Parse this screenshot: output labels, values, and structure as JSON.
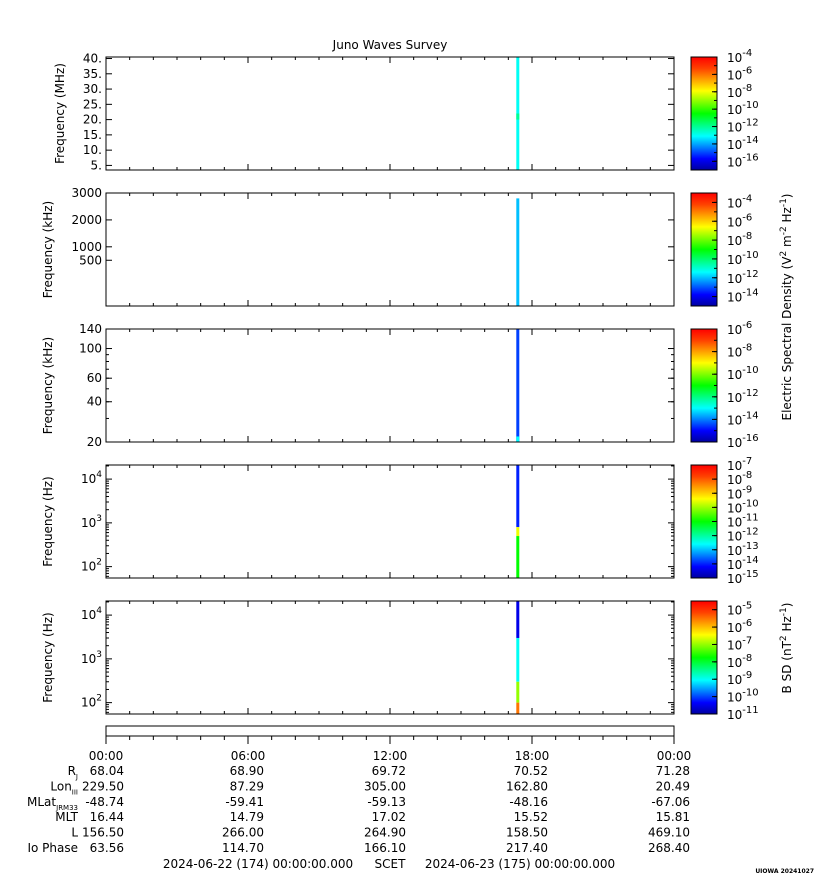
{
  "title": "Juno Waves Survey",
  "stamp": "UIOWA 20241027",
  "colors": {
    "spectrum": [
      "#0000a0",
      "#0000ff",
      "#0080ff",
      "#00ffff",
      "#00ff80",
      "#00ff00",
      "#80ff00",
      "#ffff00",
      "#ffa000",
      "#ff4000",
      "#ff0000"
    ]
  },
  "chart_data": [
    {
      "type": "heatmap",
      "ylabel": "Frequency (MHz)",
      "yscale": "linear",
      "ylim": [
        3.5,
        40.5
      ],
      "yticks": [
        {
          "v": 5,
          "t": "5."
        },
        {
          "v": 10,
          "t": "10."
        },
        {
          "v": 15,
          "t": "15."
        },
        {
          "v": 20,
          "t": "20."
        },
        {
          "v": 25,
          "t": "25."
        },
        {
          "v": 30,
          "t": "30."
        },
        {
          "v": 35,
          "t": "35."
        },
        {
          "v": 40,
          "t": "40."
        }
      ],
      "cbar": {
        "min": -17,
        "max": -4,
        "ticks": [
          -4,
          -6,
          -8,
          -10,
          -12,
          -14,
          -16
        ]
      },
      "streak": {
        "time_h": 17.4,
        "segments": [
          {
            "y0": 3.5,
            "y1": 40.5,
            "level": -13
          },
          {
            "y0": 20,
            "y1": 22,
            "level": -12
          }
        ]
      }
    },
    {
      "type": "heatmap",
      "ylabel": "Frequency (kHz)",
      "yscale": "linear",
      "ylim": [
        -1200,
        3000
      ],
      "yticks": [
        {
          "v": 500,
          "t": "500"
        },
        {
          "v": 1000,
          "t": "1000"
        },
        {
          "v": 2000,
          "t": "2000"
        },
        {
          "v": 3000,
          "t": "3000"
        }
      ],
      "cbar": {
        "min": -15,
        "max": -3,
        "ticks": [
          -4,
          -6,
          -8,
          -10,
          -12,
          -14
        ]
      },
      "streak": {
        "time_h": 17.4,
        "segments": [
          {
            "y0": -1200,
            "y1": 2800,
            "level": -12
          }
        ]
      }
    },
    {
      "type": "heatmap",
      "ylabel": "Frequency (kHz)",
      "yscale": "log",
      "ylim": [
        20,
        140
      ],
      "yticks": [
        {
          "v": 20,
          "t": "20"
        },
        {
          "v": 40,
          "t": "40"
        },
        {
          "v": 60,
          "t": "60"
        },
        {
          "v": 100,
          "t": "100"
        },
        {
          "v": 140,
          "t": "140"
        }
      ],
      "cbar": {
        "min": -16,
        "max": -6,
        "ticks": [
          -6,
          -8,
          -10,
          -12,
          -14,
          -16
        ]
      },
      "streak": {
        "time_h": 17.4,
        "segments": [
          {
            "y0": 20,
            "y1": 140,
            "level": -14.5
          },
          {
            "y0": 20,
            "y1": 22,
            "level": -13
          }
        ]
      }
    },
    {
      "type": "heatmap",
      "ylabel": "Frequency (Hz)",
      "yscale": "log",
      "ylim": [
        55,
        21000
      ],
      "yticks": [
        {
          "v": 100,
          "t": "10",
          "sup": "2"
        },
        {
          "v": 1000,
          "t": "10",
          "sup": "3"
        },
        {
          "v": 10000,
          "t": "10",
          "sup": "4"
        }
      ],
      "cbar": {
        "min": -15,
        "max": -7,
        "ticks": [
          -7,
          -8,
          -9,
          -10,
          -11,
          -12,
          -13,
          -14,
          -15
        ]
      },
      "streak": {
        "time_h": 17.4,
        "segments": [
          {
            "y0": 800,
            "y1": 21000,
            "level": -14
          },
          {
            "y0": 500,
            "y1": 800,
            "level": -9.5
          },
          {
            "y0": 55,
            "y1": 500,
            "level": -11
          }
        ]
      }
    },
    {
      "type": "heatmap",
      "ylabel": "Frequency (Hz)",
      "yscale": "log",
      "ylim": [
        55,
        21000
      ],
      "yticks": [
        {
          "v": 100,
          "t": "10",
          "sup": "2"
        },
        {
          "v": 1000,
          "t": "10",
          "sup": "3"
        },
        {
          "v": 10000,
          "t": "10",
          "sup": "4"
        }
      ],
      "cbar": {
        "min": -11,
        "max": -4.5,
        "ticks": [
          -5,
          -6,
          -7,
          -8,
          -9,
          -10,
          -11
        ]
      },
      "streak": {
        "time_h": 17.4,
        "segments": [
          {
            "y0": 3000,
            "y1": 21000,
            "level": -10.5
          },
          {
            "y0": 300,
            "y1": 3000,
            "level": -9
          },
          {
            "y0": 100,
            "y1": 300,
            "level": -7
          },
          {
            "y0": 55,
            "y1": 100,
            "level": -5.5
          }
        ]
      }
    }
  ],
  "cbar_labels": {
    "electric": {
      "main": "Electric Spectral Density (V",
      "sup1": "2",
      "mid": " m",
      "sup2": "-2",
      "mid2": " Hz",
      "sup3": "-1",
      "end": ")"
    },
    "magnetic": {
      "main": "B SD (nT",
      "sup1": "2",
      "mid": " Hz",
      "sup2": "-1",
      "end": ")"
    }
  },
  "time_axis": {
    "range_h": [
      0,
      24
    ],
    "ticks": [
      "00:00",
      "06:00",
      "12:00",
      "18:00",
      "00:00"
    ]
  },
  "ephemeris": [
    {
      "label": "R",
      "sub": "J",
      "values": [
        "68.04",
        "68.90",
        "69.72",
        "70.52",
        "71.28"
      ]
    },
    {
      "label": "Lon",
      "sub": "III",
      "values": [
        "229.50",
        "87.29",
        "305.00",
        "162.80",
        "20.49"
      ]
    },
    {
      "label": "MLat",
      "sub": "JRM33",
      "values": [
        "-48.74",
        "-59.41",
        "-59.13",
        "-48.16",
        "-67.06"
      ]
    },
    {
      "label": "MLT",
      "sub": "",
      "values": [
        "16.44",
        "14.79",
        "17.02",
        "15.52",
        "15.81"
      ]
    },
    {
      "label": "L",
      "sub": "",
      "values": [
        "156.50",
        "266.00",
        "264.90",
        "158.50",
        "469.10"
      ]
    },
    {
      "label": "Io Phase",
      "sub": "",
      "values": [
        "63.56",
        "114.70",
        "166.10",
        "217.40",
        "268.40"
      ]
    }
  ],
  "footer": {
    "start": "2024-06-22 (174) 00:00:00.000",
    "scet": "SCET",
    "end": "2024-06-23 (175) 00:00:00.000"
  }
}
